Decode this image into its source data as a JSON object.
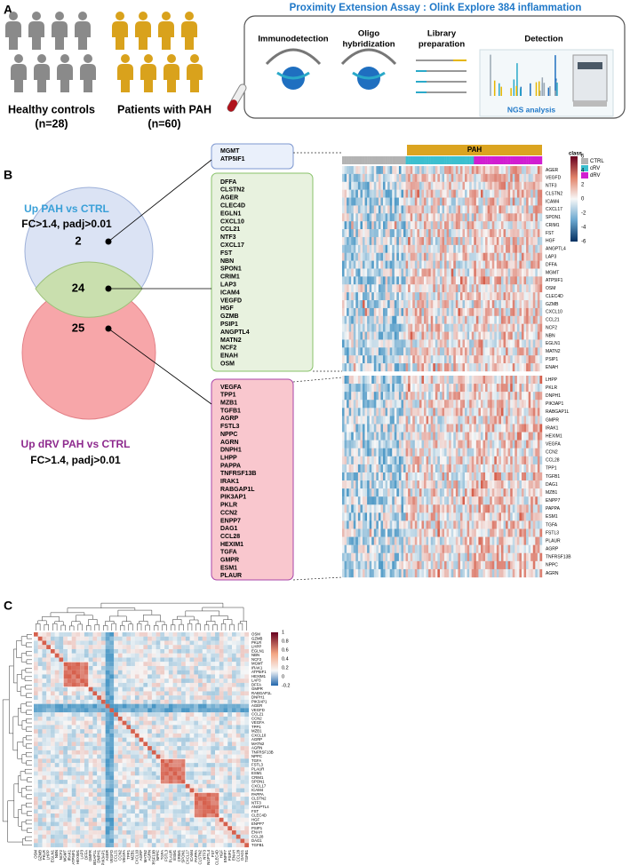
{
  "panels": {
    "a": "A",
    "b": "B",
    "c": "C"
  },
  "panel_a": {
    "groups": [
      {
        "label": "Healthy controls",
        "n": "(n=28)"
      },
      {
        "label": "Patients with PAH",
        "n": "(n=60)"
      }
    ],
    "assay_title": "Proximity Extension Assay : Olink Explore 384 inflammation",
    "steps": [
      {
        "lines": [
          "Immunodetection"
        ]
      },
      {
        "lines": [
          "Oligo",
          "hybridization"
        ]
      },
      {
        "lines": [
          "Library",
          "preparation"
        ]
      },
      {
        "lines": [
          "Detection"
        ]
      }
    ],
    "ngs": "NGS analysis"
  },
  "panel_b": {
    "venn": {
      "up_pah": {
        "title": "Up PAH vs CTRL",
        "criteria": "FC>1.4, padj>0.01"
      },
      "up_drv": {
        "title": "Up dRV PAH vs CTRL",
        "criteria": "FC>1.4, padj>0.01"
      },
      "counts": [
        "2",
        "24",
        "25"
      ]
    },
    "lists": [
      [
        "MGMT",
        "ATP5IF1"
      ],
      [
        "DFFA",
        "CLSTN2",
        "AGER",
        "CLEC4D",
        "EGLN1",
        "CXCL10",
        "CCL21",
        "NTF3",
        "CXCL17",
        "FST",
        "NBN",
        "SPON1",
        "CRIM1",
        "LAP3",
        "ICAM4",
        "VEGFD",
        "HGF",
        "GZMB",
        "PSIP1",
        "ANGPTL4",
        "MATN2",
        "NCF2",
        "ENAH",
        "OSM"
      ],
      [
        "VEGFA",
        "TPP1",
        "MZB1",
        "TGFB1",
        "AGRP",
        "FSTL3",
        "NPPC",
        "AGRN",
        "DNPH1",
        "LHPP",
        "PAPPA",
        "TNFRSF13B",
        "IRAK1",
        "RABGAP1L",
        "PIK3AP1",
        "PKLR",
        "CCN2",
        "ENPP7",
        "DAG1",
        "CCL28",
        "HEXIM1",
        "TGFA",
        "GMPR",
        "ESM1",
        "PLAUR"
      ]
    ],
    "heatmap": {
      "group_label": "PAH",
      "legend_title": "class",
      "classes": [
        {
          "name": "CTRL",
          "color": "#b3b3b3"
        },
        {
          "name": "cRV",
          "color": "#3cbfcf"
        },
        {
          "name": "dRV",
          "color": "#d11ed1"
        }
      ],
      "colorbar_ticks": [
        "6",
        "4",
        "2",
        "0",
        "-2",
        "-4",
        "-6"
      ],
      "rows_top": [
        "AGER",
        "VEGFD",
        "NTF3",
        "CLSTN2",
        "ICAM4",
        "CXCL17",
        "SPON1",
        "CRIM1",
        "FST",
        "HGF",
        "ANGPTL4",
        "LAP3",
        "DFFA",
        "MGMT",
        "ATP5IF1",
        "OSM",
        "CLEC4D",
        "GZMB",
        "CXCL10",
        "CCL21",
        "NCF2",
        "NBN",
        "EGLN1",
        "MATN2",
        "PSIP1",
        "ENAH"
      ],
      "rows_bottom": [
        "LHPP",
        "PKLR",
        "DNPH1",
        "PIK3AP1",
        "RABGAP1L",
        "GMPR",
        "IRAK1",
        "HEXIM1",
        "VEGFA",
        "CCN2",
        "CCL28",
        "TPP1",
        "TGFB1",
        "DAG1",
        "MZB1",
        "ENPP7",
        "PAPPA",
        "ESM1",
        "TGFA",
        "FSTL3",
        "PLAUR",
        "AGRP",
        "TNFRSF13B",
        "NPPC",
        "AGRN"
      ]
    }
  },
  "panel_c": {
    "colorbar_ticks": [
      "1",
      "0.8",
      "0.6",
      "0.4",
      "0.2",
      "0",
      "-0.2"
    ],
    "genes": [
      "OSM",
      "GZMB",
      "PKLR",
      "LHPP",
      "EGLN1",
      "NBN",
      "NCF2",
      "MGMT",
      "IRAK1",
      "ATP5IF1",
      "HEXIM1",
      "LAP3",
      "DFFA",
      "GMPR",
      "RABGAP1L",
      "DNPH1",
      "PIK3AP1",
      "AGER",
      "VEGFD",
      "CCL21",
      "CCN2",
      "VEGFA",
      "TPP1",
      "MZB1",
      "CXCL10",
      "AGRP",
      "MATN2",
      "AGRN",
      "TNFRSF13B",
      "NPPC",
      "TGFA",
      "FSTL3",
      "PLAUR",
      "ESM1",
      "CRIM1",
      "SPON1",
      "CXCL17",
      "ICAM4",
      "PAPPA",
      "CLSTN2",
      "NTF3",
      "ANGPTL4",
      "FST",
      "CLEC4D",
      "HGF",
      "ENPP7",
      "PSIP1",
      "ENAH",
      "CCL28",
      "DAG1",
      "TGFB1"
    ]
  }
}
